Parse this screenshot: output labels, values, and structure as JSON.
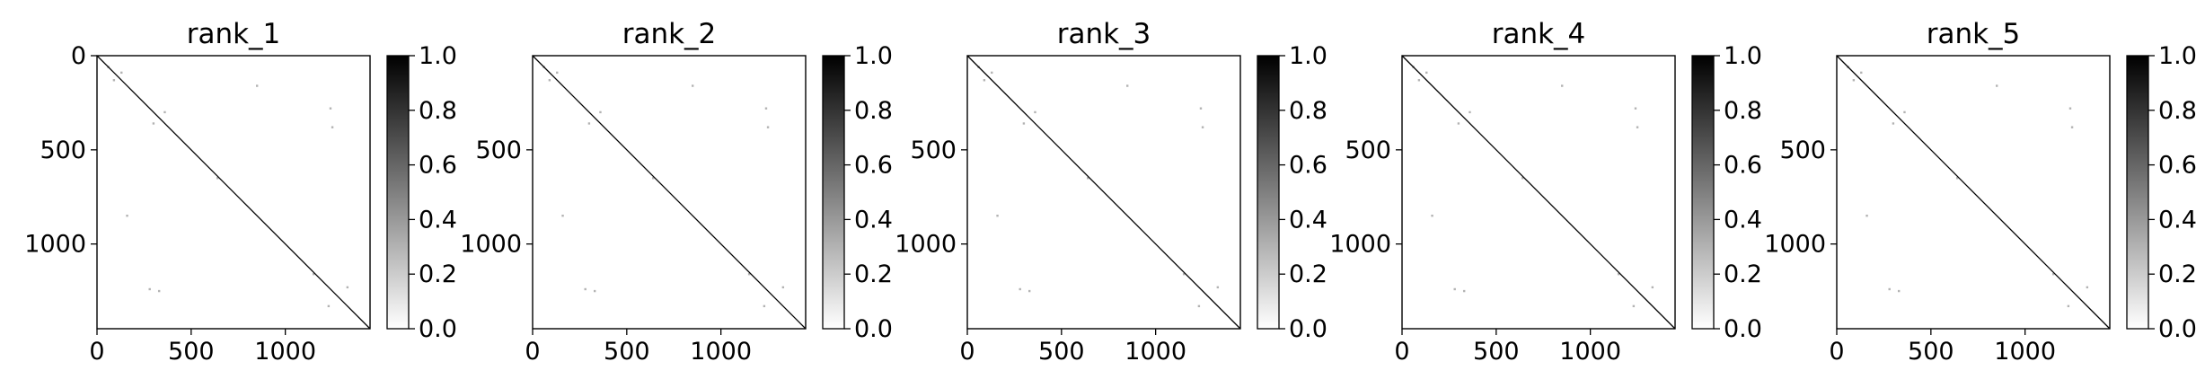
{
  "figure": {
    "background": "#ffffff",
    "contact_color": "#000000",
    "colormap": "Greys",
    "colorbar_gradient": [
      "#ffffff",
      "#000000"
    ]
  },
  "chart_data": [
    {
      "type": "heatmap",
      "title": "rank_1",
      "matrix_size": 1450,
      "xlim": [
        0,
        1450
      ],
      "ylim": [
        1450,
        0
      ],
      "x_ticks": [
        0,
        500,
        1000
      ],
      "y_ticks": [
        0,
        500,
        1000
      ],
      "x_tick_labels": [
        "0",
        "500",
        "1000"
      ],
      "y_tick_labels": [
        "0",
        "500",
        "1000"
      ],
      "colorbar": {
        "range": [
          0.0,
          1.0
        ],
        "tick_values": [
          0.0,
          0.2,
          0.4,
          0.6,
          0.8,
          1.0
        ],
        "tick_labels": [
          "0.0",
          "0.2",
          "0.4",
          "0.6",
          "0.8",
          "1.0"
        ]
      },
      "diagonal": {
        "from": 0,
        "to": 1450,
        "value": 1.0
      },
      "contacts": [
        {
          "x": 60,
          "y": 60,
          "v": 0.35
        },
        {
          "x": 90,
          "y": 130,
          "v": 0.3
        },
        {
          "x": 130,
          "y": 90,
          "v": 0.3
        },
        {
          "x": 300,
          "y": 360,
          "v": 0.3
        },
        {
          "x": 360,
          "y": 300,
          "v": 0.3
        },
        {
          "x": 280,
          "y": 1240,
          "v": 0.3
        },
        {
          "x": 330,
          "y": 1250,
          "v": 0.3
        },
        {
          "x": 1240,
          "y": 280,
          "v": 0.3
        },
        {
          "x": 1250,
          "y": 380,
          "v": 0.3
        },
        {
          "x": 850,
          "y": 160,
          "v": 0.3
        },
        {
          "x": 160,
          "y": 850,
          "v": 0.3
        },
        {
          "x": 1230,
          "y": 1330,
          "v": 0.3
        },
        {
          "x": 1330,
          "y": 1230,
          "v": 0.3
        },
        {
          "x": 1150,
          "y": 1160,
          "v": 0.3
        },
        {
          "x": 640,
          "y": 650,
          "v": 0.3
        }
      ]
    },
    {
      "type": "heatmap",
      "title": "rank_2",
      "matrix_size": 1450,
      "xlim": [
        0,
        1450
      ],
      "ylim": [
        1450,
        0
      ],
      "x_ticks": [
        0,
        500,
        1000
      ],
      "y_ticks": [
        500,
        1000
      ],
      "x_tick_labels": [
        "0",
        "500",
        "1000"
      ],
      "y_tick_labels": [
        "500",
        "1000"
      ],
      "colorbar": {
        "range": [
          0.0,
          1.0
        ],
        "tick_values": [
          0.0,
          0.2,
          0.4,
          0.6,
          0.8,
          1.0
        ],
        "tick_labels": [
          "0.0",
          "0.2",
          "0.4",
          "0.6",
          "0.8",
          "1.0"
        ]
      },
      "diagonal": {
        "from": 0,
        "to": 1450,
        "value": 1.0
      },
      "contacts": [
        {
          "x": 60,
          "y": 60,
          "v": 0.35
        },
        {
          "x": 90,
          "y": 130,
          "v": 0.3
        },
        {
          "x": 130,
          "y": 90,
          "v": 0.3
        },
        {
          "x": 300,
          "y": 360,
          "v": 0.3
        },
        {
          "x": 360,
          "y": 300,
          "v": 0.3
        },
        {
          "x": 280,
          "y": 1240,
          "v": 0.3
        },
        {
          "x": 330,
          "y": 1250,
          "v": 0.3
        },
        {
          "x": 1240,
          "y": 280,
          "v": 0.3
        },
        {
          "x": 1250,
          "y": 380,
          "v": 0.3
        },
        {
          "x": 850,
          "y": 160,
          "v": 0.3
        },
        {
          "x": 160,
          "y": 850,
          "v": 0.3
        },
        {
          "x": 1230,
          "y": 1330,
          "v": 0.3
        },
        {
          "x": 1330,
          "y": 1230,
          "v": 0.3
        },
        {
          "x": 1150,
          "y": 1160,
          "v": 0.3
        },
        {
          "x": 640,
          "y": 650,
          "v": 0.3
        }
      ]
    },
    {
      "type": "heatmap",
      "title": "rank_3",
      "matrix_size": 1450,
      "xlim": [
        0,
        1450
      ],
      "ylim": [
        1450,
        0
      ],
      "x_ticks": [
        0,
        500,
        1000
      ],
      "y_ticks": [
        500,
        1000
      ],
      "x_tick_labels": [
        "0",
        "500",
        "1000"
      ],
      "y_tick_labels": [
        "500",
        "1000"
      ],
      "colorbar": {
        "range": [
          0.0,
          1.0
        ],
        "tick_values": [
          0.0,
          0.2,
          0.4,
          0.6,
          0.8,
          1.0
        ],
        "tick_labels": [
          "0.0",
          "0.2",
          "0.4",
          "0.6",
          "0.8",
          "1.0"
        ]
      },
      "diagonal": {
        "from": 0,
        "to": 1450,
        "value": 1.0
      },
      "contacts": [
        {
          "x": 60,
          "y": 60,
          "v": 0.35
        },
        {
          "x": 90,
          "y": 130,
          "v": 0.3
        },
        {
          "x": 130,
          "y": 90,
          "v": 0.3
        },
        {
          "x": 300,
          "y": 360,
          "v": 0.3
        },
        {
          "x": 360,
          "y": 300,
          "v": 0.3
        },
        {
          "x": 280,
          "y": 1240,
          "v": 0.3
        },
        {
          "x": 330,
          "y": 1250,
          "v": 0.3
        },
        {
          "x": 1240,
          "y": 280,
          "v": 0.3
        },
        {
          "x": 1250,
          "y": 380,
          "v": 0.3
        },
        {
          "x": 850,
          "y": 160,
          "v": 0.3
        },
        {
          "x": 160,
          "y": 850,
          "v": 0.3
        },
        {
          "x": 1230,
          "y": 1330,
          "v": 0.3
        },
        {
          "x": 1330,
          "y": 1230,
          "v": 0.3
        },
        {
          "x": 1150,
          "y": 1160,
          "v": 0.3
        },
        {
          "x": 640,
          "y": 650,
          "v": 0.3
        }
      ]
    },
    {
      "type": "heatmap",
      "title": "rank_4",
      "matrix_size": 1450,
      "xlim": [
        0,
        1450
      ],
      "ylim": [
        1450,
        0
      ],
      "x_ticks": [
        0,
        500,
        1000
      ],
      "y_ticks": [
        500,
        1000
      ],
      "x_tick_labels": [
        "0",
        "500",
        "1000"
      ],
      "y_tick_labels": [
        "500",
        "1000"
      ],
      "colorbar": {
        "range": [
          0.0,
          1.0
        ],
        "tick_values": [
          0.0,
          0.2,
          0.4,
          0.6,
          0.8,
          1.0
        ],
        "tick_labels": [
          "0.0",
          "0.2",
          "0.4",
          "0.6",
          "0.8",
          "1.0"
        ]
      },
      "diagonal": {
        "from": 0,
        "to": 1450,
        "value": 1.0
      },
      "contacts": [
        {
          "x": 60,
          "y": 60,
          "v": 0.35
        },
        {
          "x": 90,
          "y": 130,
          "v": 0.3
        },
        {
          "x": 130,
          "y": 90,
          "v": 0.3
        },
        {
          "x": 300,
          "y": 360,
          "v": 0.3
        },
        {
          "x": 360,
          "y": 300,
          "v": 0.3
        },
        {
          "x": 280,
          "y": 1240,
          "v": 0.3
        },
        {
          "x": 330,
          "y": 1250,
          "v": 0.3
        },
        {
          "x": 1240,
          "y": 280,
          "v": 0.3
        },
        {
          "x": 1250,
          "y": 380,
          "v": 0.3
        },
        {
          "x": 850,
          "y": 160,
          "v": 0.3
        },
        {
          "x": 160,
          "y": 850,
          "v": 0.3
        },
        {
          "x": 1230,
          "y": 1330,
          "v": 0.3
        },
        {
          "x": 1330,
          "y": 1230,
          "v": 0.3
        },
        {
          "x": 1150,
          "y": 1160,
          "v": 0.3
        },
        {
          "x": 640,
          "y": 650,
          "v": 0.3
        }
      ]
    },
    {
      "type": "heatmap",
      "title": "rank_5",
      "matrix_size": 1450,
      "xlim": [
        0,
        1450
      ],
      "ylim": [
        1450,
        0
      ],
      "x_ticks": [
        0,
        500,
        1000
      ],
      "y_ticks": [
        500,
        1000
      ],
      "x_tick_labels": [
        "0",
        "500",
        "1000"
      ],
      "y_tick_labels": [
        "500",
        "1000"
      ],
      "colorbar": {
        "range": [
          0.0,
          1.0
        ],
        "tick_values": [
          0.0,
          0.2,
          0.4,
          0.6,
          0.8,
          1.0
        ],
        "tick_labels": [
          "0.0",
          "0.2",
          "0.4",
          "0.6",
          "0.8",
          "1.0"
        ]
      },
      "diagonal": {
        "from": 0,
        "to": 1450,
        "value": 1.0
      },
      "contacts": [
        {
          "x": 60,
          "y": 60,
          "v": 0.35
        },
        {
          "x": 90,
          "y": 130,
          "v": 0.3
        },
        {
          "x": 130,
          "y": 90,
          "v": 0.3
        },
        {
          "x": 300,
          "y": 360,
          "v": 0.3
        },
        {
          "x": 360,
          "y": 300,
          "v": 0.3
        },
        {
          "x": 280,
          "y": 1240,
          "v": 0.3
        },
        {
          "x": 330,
          "y": 1250,
          "v": 0.3
        },
        {
          "x": 1240,
          "y": 280,
          "v": 0.3
        },
        {
          "x": 1250,
          "y": 380,
          "v": 0.3
        },
        {
          "x": 850,
          "y": 160,
          "v": 0.3
        },
        {
          "x": 160,
          "y": 850,
          "v": 0.3
        },
        {
          "x": 1230,
          "y": 1330,
          "v": 0.3
        },
        {
          "x": 1330,
          "y": 1230,
          "v": 0.3
        },
        {
          "x": 1150,
          "y": 1160,
          "v": 0.3
        },
        {
          "x": 640,
          "y": 650,
          "v": 0.3
        }
      ]
    }
  ]
}
